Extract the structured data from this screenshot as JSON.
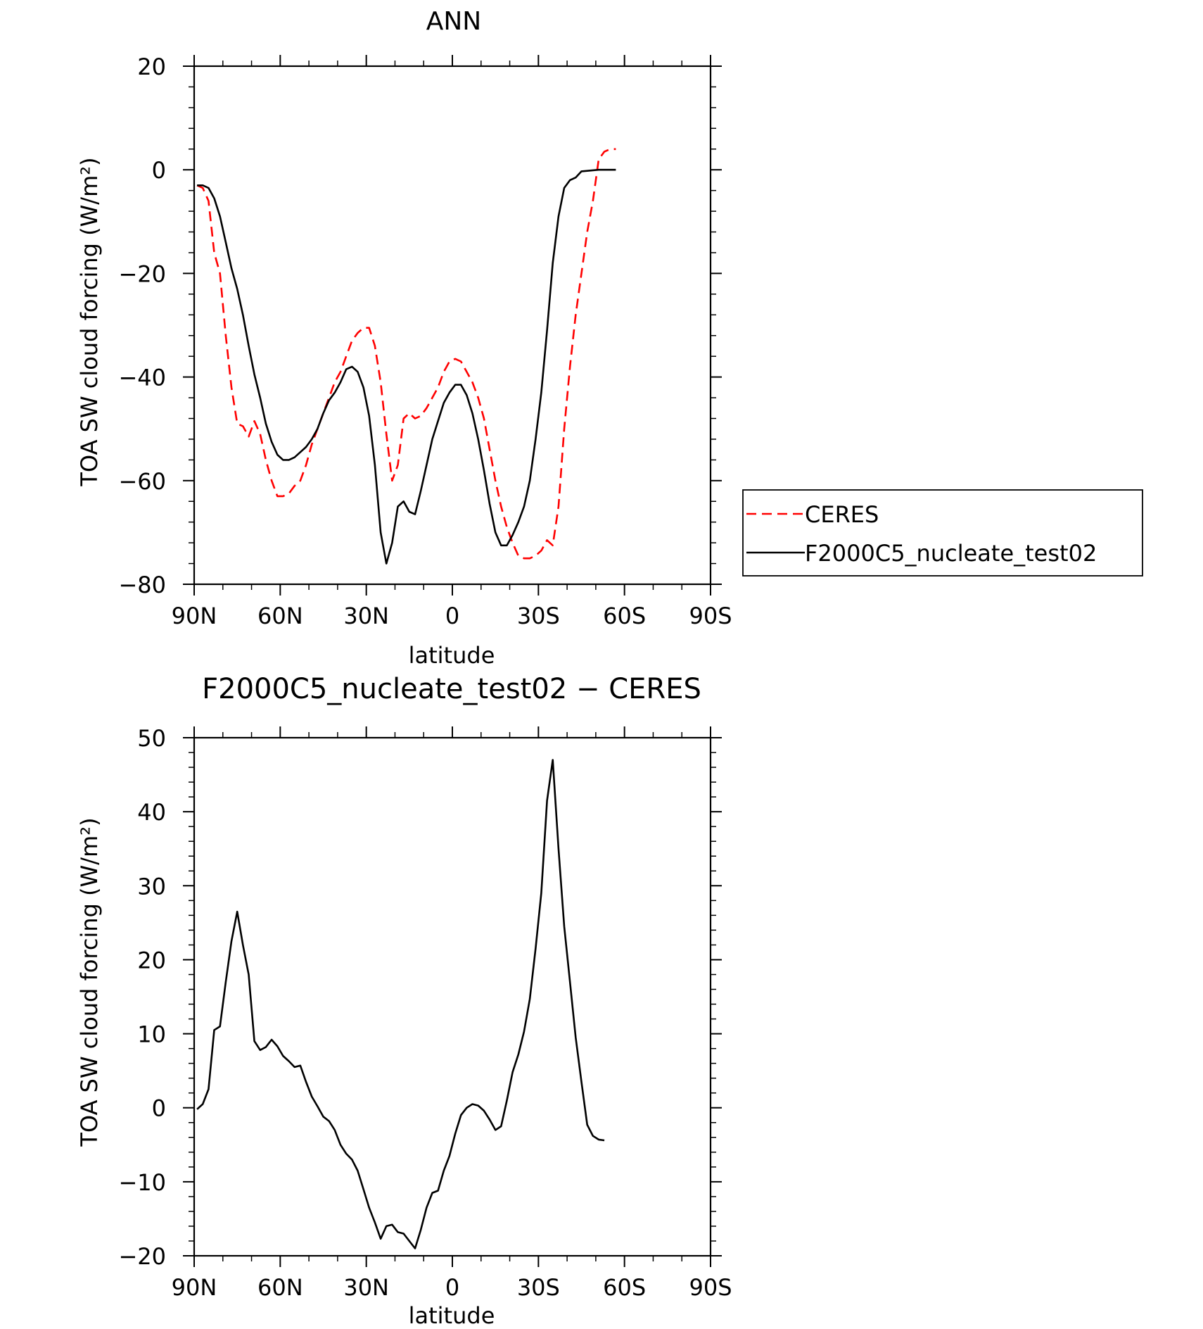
{
  "chart_data": [
    {
      "type": "line",
      "title": "ANN",
      "xlabel": "latitude",
      "ylabel": "TOA SW cloud forcing (W/m²)",
      "xlim": [
        90,
        -90
      ],
      "ylim": [
        -80,
        20
      ],
      "x_ticks": [
        {
          "value": 90,
          "label": "90N"
        },
        {
          "value": 60,
          "label": "60N"
        },
        {
          "value": 30,
          "label": "30N"
        },
        {
          "value": 0,
          "label": "0"
        },
        {
          "value": -30,
          "label": "30S"
        },
        {
          "value": -60,
          "label": "60S"
        },
        {
          "value": -90,
          "label": "90S"
        }
      ],
      "y_ticks": [
        20,
        0,
        -20,
        -40,
        -60,
        -80
      ],
      "legend_position": "right",
      "series": [
        {
          "name": "CERES",
          "color": "#ff0000",
          "style": "dashed",
          "points": [
            [
              89,
              -3
            ],
            [
              87,
              -3.5
            ],
            [
              85,
              -6
            ],
            [
              83,
              -16
            ],
            [
              81,
              -20
            ],
            [
              79,
              -32
            ],
            [
              77,
              -42
            ],
            [
              75,
              -49
            ],
            [
              73,
              -49.5
            ],
            [
              71,
              -51.5
            ],
            [
              69,
              -48.5
            ],
            [
              67,
              -51
            ],
            [
              65,
              -56
            ],
            [
              63,
              -60
            ],
            [
              61,
              -63
            ],
            [
              59,
              -63
            ],
            [
              57,
              -62.5
            ],
            [
              55,
              -61
            ],
            [
              53,
              -60
            ],
            [
              51,
              -57
            ],
            [
              49,
              -53
            ],
            [
              47,
              -50
            ],
            [
              45,
              -47
            ],
            [
              43,
              -44
            ],
            [
              41,
              -41
            ],
            [
              39,
              -39
            ],
            [
              37,
              -36
            ],
            [
              35,
              -33
            ],
            [
              33,
              -31.5
            ],
            [
              31,
              -30.5
            ],
            [
              29,
              -30.5
            ],
            [
              27,
              -34
            ],
            [
              25,
              -41
            ],
            [
              23,
              -51
            ],
            [
              21,
              -60
            ],
            [
              19,
              -57
            ],
            [
              17,
              -48
            ],
            [
              15,
              -47
            ],
            [
              13,
              -48
            ],
            [
              11,
              -47.5
            ],
            [
              9,
              -46
            ],
            [
              7,
              -44
            ],
            [
              5,
              -42
            ],
            [
              3,
              -39
            ],
            [
              1,
              -37
            ],
            [
              -1,
              -36.5
            ],
            [
              -3,
              -37
            ],
            [
              -5,
              -39
            ],
            [
              -7,
              -41
            ],
            [
              -9,
              -44
            ],
            [
              -11,
              -48
            ],
            [
              -13,
              -54
            ],
            [
              -15,
              -60
            ],
            [
              -17,
              -65
            ],
            [
              -19,
              -69
            ],
            [
              -21,
              -72
            ],
            [
              -23,
              -74.5
            ],
            [
              -25,
              -75
            ],
            [
              -27,
              -75
            ],
            [
              -29,
              -74.5
            ],
            [
              -31,
              -73.5
            ],
            [
              -33,
              -71.5
            ],
            [
              -35,
              -72.5
            ],
            [
              -37,
              -65
            ],
            [
              -39,
              -50
            ],
            [
              -41,
              -38
            ],
            [
              -43,
              -28
            ],
            [
              -45,
              -20
            ],
            [
              -47,
              -12
            ],
            [
              -49,
              -6
            ],
            [
              -51,
              2
            ],
            [
              -53,
              3.5
            ],
            [
              -55,
              4
            ],
            [
              -57,
              4
            ]
          ]
        },
        {
          "name": "F2000C5_nucleate_test02",
          "color": "#000000",
          "style": "solid",
          "points": [
            [
              89,
              -3
            ],
            [
              87,
              -3
            ],
            [
              85,
              -3.5
            ],
            [
              83,
              -5.5
            ],
            [
              81,
              -9
            ],
            [
              79,
              -14
            ],
            [
              77,
              -19
            ],
            [
              75,
              -23
            ],
            [
              73,
              -28
            ],
            [
              71,
              -34
            ],
            [
              69,
              -39.5
            ],
            [
              67,
              -44
            ],
            [
              65,
              -49
            ],
            [
              63,
              -52.5
            ],
            [
              61,
              -55
            ],
            [
              59,
              -56
            ],
            [
              57,
              -56
            ],
            [
              55,
              -55.5
            ],
            [
              53,
              -54.5
            ],
            [
              51,
              -53.5
            ],
            [
              49,
              -52
            ],
            [
              47,
              -50
            ],
            [
              45,
              -47
            ],
            [
              43,
              -44.5
            ],
            [
              41,
              -43
            ],
            [
              39,
              -41
            ],
            [
              37,
              -38.5
            ],
            [
              35,
              -38
            ],
            [
              33,
              -39
            ],
            [
              31,
              -42
            ],
            [
              29,
              -47.5
            ],
            [
              27,
              -57
            ],
            [
              25,
              -70
            ],
            [
              23,
              -76
            ],
            [
              21,
              -72
            ],
            [
              19,
              -65
            ],
            [
              17,
              -64
            ],
            [
              15,
              -66
            ],
            [
              13,
              -66.5
            ],
            [
              11,
              -62
            ],
            [
              9,
              -57
            ],
            [
              7,
              -52
            ],
            [
              5,
              -48.5
            ],
            [
              3,
              -45
            ],
            [
              1,
              -43
            ],
            [
              -1,
              -41.5
            ],
            [
              -3,
              -41.5
            ],
            [
              -5,
              -43.5
            ],
            [
              -7,
              -47
            ],
            [
              -9,
              -52
            ],
            [
              -11,
              -58
            ],
            [
              -13,
              -64.5
            ],
            [
              -15,
              -70
            ],
            [
              -17,
              -72.5
            ],
            [
              -19,
              -72.5
            ],
            [
              -21,
              -70.5
            ],
            [
              -23,
              -68
            ],
            [
              -25,
              -65
            ],
            [
              -27,
              -60
            ],
            [
              -29,
              -52
            ],
            [
              -31,
              -43
            ],
            [
              -33,
              -31
            ],
            [
              -35,
              -18
            ],
            [
              -37,
              -9
            ],
            [
              -39,
              -3.5
            ],
            [
              -41,
              -2
            ],
            [
              -43,
              -1.5
            ],
            [
              -45,
              -0.3
            ],
            [
              -47,
              -0.2
            ],
            [
              -49,
              -0.1
            ],
            [
              -51,
              0
            ],
            [
              -53,
              0
            ],
            [
              -55,
              0
            ],
            [
              -57,
              0
            ]
          ]
        }
      ]
    },
    {
      "type": "line",
      "title": "F2000C5_nucleate_test02 − CERES",
      "xlabel": "latitude",
      "ylabel": "TOA SW cloud forcing (W/m²)",
      "xlim": [
        90,
        -90
      ],
      "ylim": [
        -20,
        50
      ],
      "x_ticks": [
        {
          "value": 90,
          "label": "90N"
        },
        {
          "value": 60,
          "label": "60N"
        },
        {
          "value": 30,
          "label": "30N"
        },
        {
          "value": 0,
          "label": "0"
        },
        {
          "value": -30,
          "label": "30S"
        },
        {
          "value": -60,
          "label": "60S"
        },
        {
          "value": -90,
          "label": "90S"
        }
      ],
      "y_ticks": [
        50,
        40,
        30,
        20,
        10,
        0,
        -10,
        -20
      ],
      "series": [
        {
          "color": "#000000",
          "style": "solid",
          "points": [
            [
              89,
              -0.2
            ],
            [
              87,
              0.5
            ],
            [
              85,
              2.5
            ],
            [
              83,
              10.5
            ],
            [
              81,
              11
            ],
            [
              79,
              17
            ],
            [
              77,
              22.5
            ],
            [
              75,
              26.5
            ],
            [
              73,
              22
            ],
            [
              71,
              18
            ],
            [
              69,
              9
            ],
            [
              67,
              7.8
            ],
            [
              65,
              8.2
            ],
            [
              63,
              9.2
            ],
            [
              61,
              8.3
            ],
            [
              59,
              7
            ],
            [
              57,
              6.3
            ],
            [
              55,
              5.5
            ],
            [
              53,
              5.7
            ],
            [
              51,
              3.5
            ],
            [
              49,
              1.5
            ],
            [
              47,
              0.2
            ],
            [
              45,
              -1.2
            ],
            [
              43,
              -1.8
            ],
            [
              41,
              -3
            ],
            [
              39,
              -5
            ],
            [
              37,
              -6.2
            ],
            [
              35,
              -7
            ],
            [
              33,
              -8.5
            ],
            [
              31,
              -11
            ],
            [
              29,
              -13.5
            ],
            [
              27,
              -15.5
            ],
            [
              25,
              -17.7
            ],
            [
              23,
              -16
            ],
            [
              21,
              -15.8
            ],
            [
              19,
              -16.8
            ],
            [
              17,
              -17
            ],
            [
              15,
              -18
            ],
            [
              13,
              -19
            ],
            [
              11,
              -16.5
            ],
            [
              9,
              -13.5
            ],
            [
              7,
              -11.5
            ],
            [
              5,
              -11.2
            ],
            [
              3,
              -8.5
            ],
            [
              1,
              -6.5
            ],
            [
              -1,
              -3.5
            ],
            [
              -3,
              -1
            ],
            [
              -5,
              0
            ],
            [
              -7,
              0.5
            ],
            [
              -9,
              0.3
            ],
            [
              -11,
              -0.4
            ],
            [
              -13,
              -1.6
            ],
            [
              -15,
              -3
            ],
            [
              -17,
              -2.5
            ],
            [
              -19,
              1
            ],
            [
              -21,
              4.8
            ],
            [
              -23,
              7.2
            ],
            [
              -25,
              10.3
            ],
            [
              -27,
              14.7
            ],
            [
              -29,
              21.5
            ],
            [
              -31,
              29
            ],
            [
              -33,
              41.5
            ],
            [
              -35,
              47
            ],
            [
              -37,
              35
            ],
            [
              -39,
              24.5
            ],
            [
              -41,
              17
            ],
            [
              -43,
              9.5
            ],
            [
              -45,
              3.5
            ],
            [
              -47,
              -2.3
            ],
            [
              -49,
              -3.8
            ],
            [
              -51,
              -4.3
            ],
            [
              -53,
              -4.4
            ]
          ]
        }
      ]
    }
  ],
  "legend": {
    "items": [
      "CERES",
      "F2000C5_nucleate_test02"
    ]
  }
}
